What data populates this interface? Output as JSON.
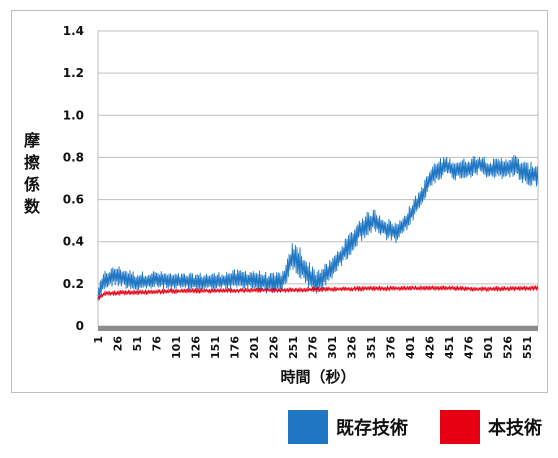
{
  "chart_data": {
    "type": "line",
    "title": "",
    "xlabel": "時間（秒）",
    "ylabel": "摩擦係数",
    "ylim": [
      0,
      1.4
    ],
    "yticks": [
      "0",
      "0.2",
      "0.4",
      "0.6",
      "0.8",
      "1.0",
      "1.2",
      "1.4"
    ],
    "xticks": [
      1,
      26,
      51,
      76,
      101,
      126,
      151,
      176,
      201,
      226,
      251,
      276,
      301,
      326,
      351,
      376,
      401,
      426,
      451,
      476,
      501,
      526,
      551
    ],
    "xlim": [
      1,
      565
    ],
    "grid": true,
    "legend_position": "bottom-right",
    "series": [
      {
        "name": "既存技術",
        "color": "#1f77c4",
        "baseline": [
          [
            1,
            0.15
          ],
          [
            10,
            0.22
          ],
          [
            25,
            0.24
          ],
          [
            50,
            0.21
          ],
          [
            75,
            0.22
          ],
          [
            100,
            0.21
          ],
          [
            125,
            0.21
          ],
          [
            150,
            0.21
          ],
          [
            175,
            0.22
          ],
          [
            200,
            0.22
          ],
          [
            225,
            0.2
          ],
          [
            240,
            0.22
          ],
          [
            250,
            0.33
          ],
          [
            260,
            0.3
          ],
          [
            270,
            0.24
          ],
          [
            280,
            0.21
          ],
          [
            290,
            0.23
          ],
          [
            300,
            0.27
          ],
          [
            320,
            0.37
          ],
          [
            340,
            0.47
          ],
          [
            355,
            0.5
          ],
          [
            370,
            0.46
          ],
          [
            385,
            0.44
          ],
          [
            400,
            0.52
          ],
          [
            415,
            0.61
          ],
          [
            430,
            0.72
          ],
          [
            445,
            0.76
          ],
          [
            460,
            0.74
          ],
          [
            475,
            0.75
          ],
          [
            490,
            0.77
          ],
          [
            505,
            0.74
          ],
          [
            520,
            0.75
          ],
          [
            535,
            0.76
          ],
          [
            550,
            0.72
          ],
          [
            565,
            0.72
          ]
        ],
        "amplitude": [
          [
            1,
            0.04
          ],
          [
            25,
            0.05
          ],
          [
            100,
            0.04
          ],
          [
            200,
            0.05
          ],
          [
            240,
            0.05
          ],
          [
            260,
            0.08
          ],
          [
            300,
            0.05
          ],
          [
            340,
            0.06
          ],
          [
            400,
            0.05
          ],
          [
            450,
            0.05
          ],
          [
            500,
            0.05
          ],
          [
            565,
            0.06
          ]
        ]
      },
      {
        "name": "本技術",
        "color": "#e60012",
        "baseline": [
          [
            1,
            0.13
          ],
          [
            10,
            0.155
          ],
          [
            100,
            0.165
          ],
          [
            200,
            0.17
          ],
          [
            250,
            0.17
          ],
          [
            300,
            0.175
          ],
          [
            400,
            0.18
          ],
          [
            450,
            0.18
          ],
          [
            500,
            0.175
          ],
          [
            565,
            0.18
          ]
        ],
        "amplitude": [
          [
            1,
            0.012
          ],
          [
            565,
            0.012
          ]
        ]
      }
    ]
  },
  "legend": {
    "items": [
      {
        "label": "既存技術",
        "color": "#1f77c4"
      },
      {
        "label": "本技術",
        "color": "#e60012"
      }
    ]
  }
}
